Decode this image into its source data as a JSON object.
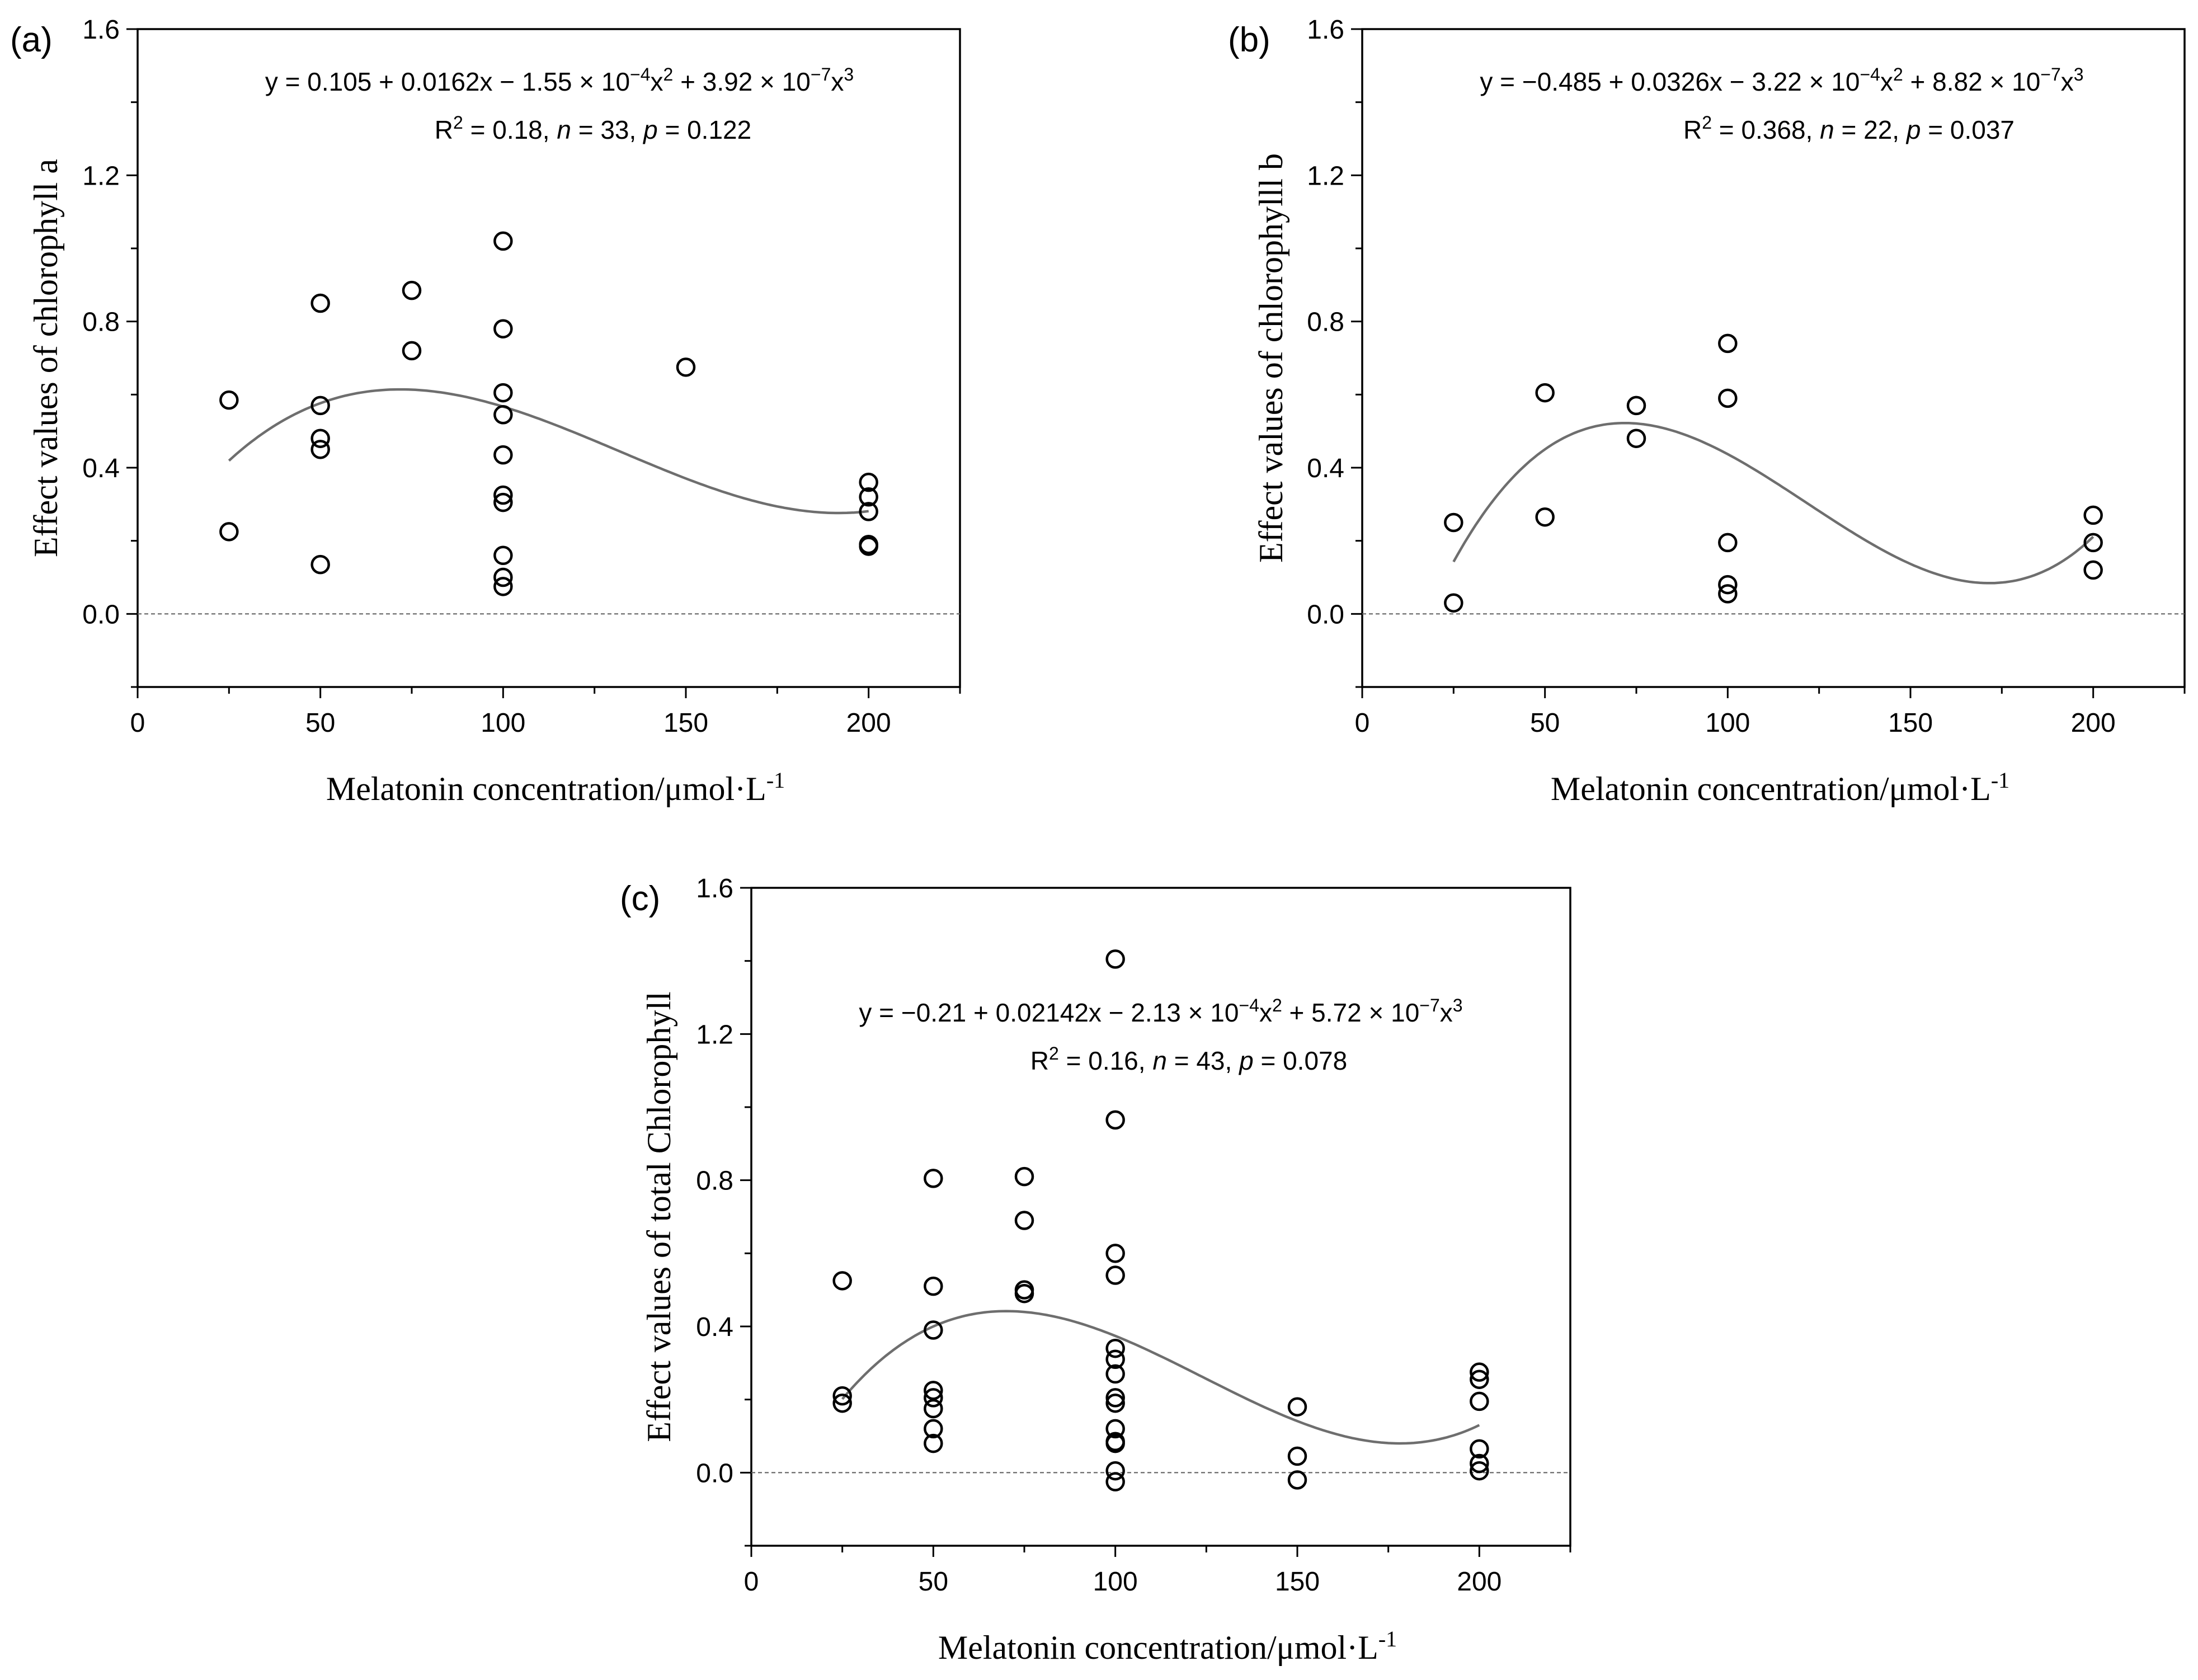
{
  "chart_data": [
    {
      "type": "scatter",
      "panel_label": "(a)",
      "equation": {
        "pre": "y = 0.105 + 0.0162x − 1.55 × 10",
        "e1": "−4",
        "mid": "x",
        "e2": "2",
        "post": " + 3.92 × 10",
        "e3": "−7",
        "post2": "x",
        "e4": "3"
      },
      "stats": {
        "r_label": "R",
        "r_exp": "2",
        "r_value": " = 0.18,  ",
        "n_sym": "n",
        "n_value": " = 33,  ",
        "p_sym": "p",
        "p_value": " = 0.122"
      },
      "xlabel": "Melatonin concentration/μmol·L",
      "xlabel_exp": "-1",
      "ylabel": "Effect values of chlorophyll a",
      "xlim": [
        0,
        225
      ],
      "ylim": [
        -0.2,
        1.6
      ],
      "xticks": [
        "0",
        "50",
        "100",
        "150",
        "200"
      ],
      "yticks": [
        "0.0",
        "0.4",
        "0.8",
        "1.2",
        "1.6"
      ],
      "fit_coefficients": [
        0.105,
        0.0162,
        -0.000155,
        3.92e-07
      ],
      "fit_range": [
        25,
        200
      ],
      "points": [
        [
          25,
          0.585
        ],
        [
          25,
          0.225
        ],
        [
          50,
          0.85
        ],
        [
          50,
          0.57
        ],
        [
          50,
          0.48
        ],
        [
          50,
          0.45
        ],
        [
          50,
          0.135
        ],
        [
          75,
          0.885
        ],
        [
          75,
          0.72
        ],
        [
          100,
          1.02
        ],
        [
          100,
          0.78
        ],
        [
          100,
          0.605
        ],
        [
          100,
          0.545
        ],
        [
          100,
          0.435
        ],
        [
          100,
          0.325
        ],
        [
          100,
          0.305
        ],
        [
          100,
          0.16
        ],
        [
          100,
          0.1
        ],
        [
          100,
          0.075
        ],
        [
          150,
          0.675
        ],
        [
          200,
          0.36
        ],
        [
          200,
          0.32
        ],
        [
          200,
          0.28
        ],
        [
          200,
          0.19
        ],
        [
          200,
          0.185
        ]
      ]
    },
    {
      "type": "scatter",
      "panel_label": "(b)",
      "equation": {
        "pre": "y = −0.485 + 0.0326x − 3.22 × 10",
        "e1": "−4",
        "mid": "x",
        "e2": "2",
        "post": " + 8.82 × 10",
        "e3": "−7",
        "post2": "x",
        "e4": "3"
      },
      "stats": {
        "r_label": "R",
        "r_exp": "2",
        "r_value": " = 0.368,  ",
        "n_sym": "n",
        "n_value": " = 22, ",
        "p_sym": "p",
        "p_value": " = 0.037"
      },
      "xlabel": "Melatonin concentration/μmol·L",
      "xlabel_exp": "-1",
      "ylabel": "Effect values of chlorophylll b",
      "xlim": [
        0,
        225
      ],
      "ylim": [
        -0.2,
        1.6
      ],
      "xticks": [
        "0",
        "50",
        "100",
        "150",
        "200"
      ],
      "yticks": [
        "0.0",
        "0.4",
        "0.8",
        "1.2",
        "1.6"
      ],
      "fit_coefficients": [
        -0.485,
        0.0326,
        -0.000322,
        8.82e-07
      ],
      "fit_range": [
        25,
        200
      ],
      "points": [
        [
          25,
          0.25
        ],
        [
          25,
          0.03
        ],
        [
          50,
          0.605
        ],
        [
          50,
          0.265
        ],
        [
          75,
          0.57
        ],
        [
          75,
          0.48
        ],
        [
          100,
          0.74
        ],
        [
          100,
          0.59
        ],
        [
          100,
          0.195
        ],
        [
          100,
          0.08
        ],
        [
          100,
          0.055
        ],
        [
          200,
          0.27
        ],
        [
          200,
          0.195
        ],
        [
          200,
          0.12
        ]
      ]
    },
    {
      "type": "scatter",
      "panel_label": "(c)",
      "equation": {
        "pre": "y = −0.21 + 0.02142x − 2.13 × 10",
        "e1": "−4",
        "mid": "x",
        "e2": "2",
        "post": " + 5.72 × 10",
        "e3": "−7",
        "post2": "x",
        "e4": "3"
      },
      "stats": {
        "r_label": "R",
        "r_exp": "2",
        "r_value": " = 0.16,  ",
        "n_sym": "n",
        "n_value": " = 43,  ",
        "p_sym": "p",
        "p_value": " = 0.078"
      },
      "xlabel": "Melatonin concentration/μmol·L",
      "xlabel_exp": "-1",
      "ylabel": "Effect values of  total Chlorophyll",
      "xlim": [
        0,
        225
      ],
      "ylim": [
        -0.2,
        1.6
      ],
      "xticks": [
        "0",
        "50",
        "100",
        "150",
        "200"
      ],
      "yticks": [
        "0.0",
        "0.4",
        "0.8",
        "1.2",
        "1.6"
      ],
      "fit_coefficients": [
        -0.21,
        0.02142,
        -0.000213,
        5.72e-07
      ],
      "fit_range": [
        25,
        200
      ],
      "points": [
        [
          25,
          0.525
        ],
        [
          25,
          0.21
        ],
        [
          25,
          0.19
        ],
        [
          50,
          0.805
        ],
        [
          50,
          0.51
        ],
        [
          50,
          0.39
        ],
        [
          50,
          0.225
        ],
        [
          50,
          0.205
        ],
        [
          50,
          0.175
        ],
        [
          50,
          0.12
        ],
        [
          50,
          0.08
        ],
        [
          75,
          0.81
        ],
        [
          75,
          0.69
        ],
        [
          75,
          0.5
        ],
        [
          75,
          0.49
        ],
        [
          100,
          1.405
        ],
        [
          100,
          0.965
        ],
        [
          100,
          0.6
        ],
        [
          100,
          0.54
        ],
        [
          100,
          0.34
        ],
        [
          100,
          0.31
        ],
        [
          100,
          0.27
        ],
        [
          100,
          0.205
        ],
        [
          100,
          0.19
        ],
        [
          100,
          0.12
        ],
        [
          100,
          0.085
        ],
        [
          100,
          0.08
        ],
        [
          100,
          0.005
        ],
        [
          100,
          -0.025
        ],
        [
          150,
          0.18
        ],
        [
          150,
          0.045
        ],
        [
          150,
          -0.02
        ],
        [
          200,
          0.275
        ],
        [
          200,
          0.255
        ],
        [
          200,
          0.195
        ],
        [
          200,
          0.065
        ],
        [
          200,
          0.025
        ],
        [
          200,
          0.005
        ]
      ]
    }
  ]
}
